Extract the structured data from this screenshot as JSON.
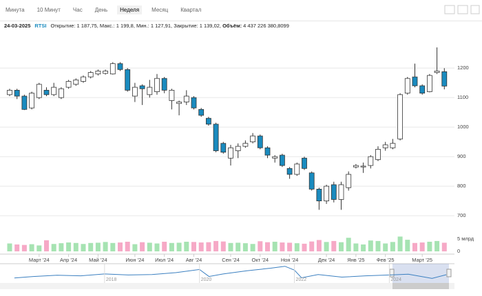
{
  "toolbar": {
    "tabs": [
      "Минута",
      "10 Минут",
      "Час",
      "День",
      "Неделя",
      "Месяц",
      "Квартал"
    ],
    "active": 4
  },
  "info": {
    "date": "24-03-2025",
    "ticker": "RTSI",
    "open": "Открытие: 1 187,75",
    "high": "Макс.: 1 199,8",
    "low": "Мин.: 1 127,91",
    "close": "Закрытие: 1 139,02",
    "volume_label": "Объём:",
    "volume": "4 437 226 380,8099"
  },
  "chart_data": {
    "type": "candlestick",
    "categories": [
      null,
      null,
      null,
      null,
      "Март '24",
      null,
      null,
      null,
      "Апр '24",
      null,
      null,
      null,
      "Май '24",
      null,
      null,
      null,
      null,
      "Июн '24",
      null,
      null,
      null,
      "Июл '24",
      null,
      null,
      null,
      "Авг '24",
      null,
      null,
      null,
      null,
      "Сен '24",
      null,
      null,
      null,
      "Окт '24",
      null,
      null,
      null,
      "Ноя '24",
      null,
      null,
      null,
      null,
      "Дек '24",
      null,
      null,
      null,
      "Янв '25",
      null,
      null,
      null,
      "Фев '25",
      null,
      null,
      null,
      null,
      "Март '25",
      null,
      null,
      null
    ],
    "open": [
      1110,
      1125,
      1105,
      1065,
      1100,
      1125,
      1110,
      1100,
      1135,
      1145,
      1155,
      1170,
      1180,
      1182,
      1180,
      1215,
      1195,
      1105,
      1140,
      1110,
      1120,
      1165,
      1090,
      1080,
      1085,
      1100,
      1060,
      1030,
      1010,
      945,
      895,
      920,
      935,
      950,
      970,
      930,
      895,
      905,
      860,
      840,
      895,
      845,
      790,
      750,
      805,
      755,
      795,
      865,
      865,
      870,
      890,
      930,
      930,
      960,
      1115,
      1170,
      1140,
      1120,
      1185,
      1187.75
    ],
    "high": [
      1130,
      1130,
      1110,
      1120,
      1150,
      1135,
      1150,
      1135,
      1160,
      1165,
      1175,
      1190,
      1195,
      1195,
      1220,
      1220,
      1200,
      1150,
      1145,
      1160,
      1180,
      1170,
      1130,
      1090,
      1125,
      1105,
      1065,
      1035,
      1015,
      950,
      940,
      945,
      955,
      980,
      975,
      935,
      905,
      910,
      865,
      880,
      900,
      850,
      795,
      805,
      815,
      815,
      850,
      875,
      880,
      905,
      935,
      950,
      960,
      1115,
      1170,
      1215,
      1145,
      1180,
      1270,
      1199.8
    ],
    "low": [
      1105,
      1095,
      1058,
      1060,
      1095,
      1105,
      1105,
      1095,
      1130,
      1140,
      1150,
      1165,
      1175,
      1178,
      1178,
      1190,
      1120,
      1085,
      1075,
      1100,
      1110,
      1115,
      1060,
      1040,
      1075,
      1060,
      1035,
      1005,
      915,
      910,
      870,
      895,
      930,
      945,
      925,
      895,
      880,
      865,
      825,
      835,
      855,
      785,
      720,
      740,
      745,
      720,
      785,
      860,
      845,
      860,
      885,
      920,
      925,
      955,
      1110,
      1135,
      1110,
      1118,
      1180,
      1127.91
    ],
    "close": [
      1125,
      1105,
      1060,
      1115,
      1145,
      1110,
      1135,
      1130,
      1155,
      1160,
      1170,
      1185,
      1190,
      1190,
      1215,
      1195,
      1125,
      1135,
      1130,
      1135,
      1165,
      1125,
      1125,
      1085,
      1105,
      1065,
      1040,
      1010,
      920,
      915,
      930,
      935,
      945,
      970,
      930,
      905,
      900,
      870,
      840,
      875,
      860,
      790,
      750,
      800,
      755,
      805,
      840,
      870,
      868,
      900,
      925,
      940,
      945,
      1110,
      1165,
      1140,
      1115,
      1175,
      1190,
      1139.02
    ],
    "ylim": [
      663,
      1298
    ],
    "yticks": [
      700,
      800,
      900,
      1000,
      1100,
      1200
    ],
    "grid": true,
    "up_color": "#ffffff",
    "down_color": "#1a8bbf",
    "volume": [
      3.2,
      2.8,
      2.6,
      2.9,
      2.4,
      4.5,
      3.0,
      3.3,
      3.6,
      3.4,
      3.0,
      3.4,
      3.5,
      3.8,
      3.4,
      3.6,
      3.9,
      2.9,
      3.7,
      3.5,
      3.2,
      3.9,
      3.4,
      3.5,
      3.9,
      3.8,
      3.6,
      3.7,
      4.2,
      4.0,
      3.4,
      3.5,
      3.3,
      3.0,
      4.1,
      3.7,
      3.9,
      3.6,
      3.5,
      3.3,
      3.1,
      4.0,
      4.6,
      3.8,
      4.2,
      3.7,
      5.5,
      3.2,
      2.8,
      4.4,
      4.2,
      3.2,
      3.8,
      6.0,
      4.7,
      3.4,
      3.6,
      3.9,
      4.2,
      3.5
    ],
    "volume_ylim": [
      0,
      6.4
    ],
    "volume_yticks": [
      0,
      {
        "value": 5,
        "label": "5 млрд"
      }
    ],
    "volume_up_color": "#a6e3b2",
    "volume_down_color": "#f6a9c6",
    "navigator": {
      "x": [
        2016.1,
        2016.5,
        2017,
        2017.5,
        2018,
        2018.5,
        2019,
        2019.5,
        2020,
        2020.2,
        2020.5,
        2021,
        2021.5,
        2021.8,
        2022,
        2022.15,
        2022.5,
        2023,
        2023.5,
        2024,
        2024.4,
        2024.9,
        2025.2
      ],
      "values": [
        880,
        1000,
        1100,
        1050,
        1200,
        1120,
        1150,
        1300,
        1550,
        1000,
        1200,
        1450,
        1650,
        1800,
        1500,
        900,
        1150,
        950,
        1050,
        1120,
        1180,
        850,
        1140
      ],
      "xlim": [
        2016,
        2025.3
      ],
      "ylim": [
        600,
        2000
      ],
      "xticks": [
        2018,
        2020,
        2022,
        2024
      ],
      "color": "#3a7fc0"
    }
  }
}
